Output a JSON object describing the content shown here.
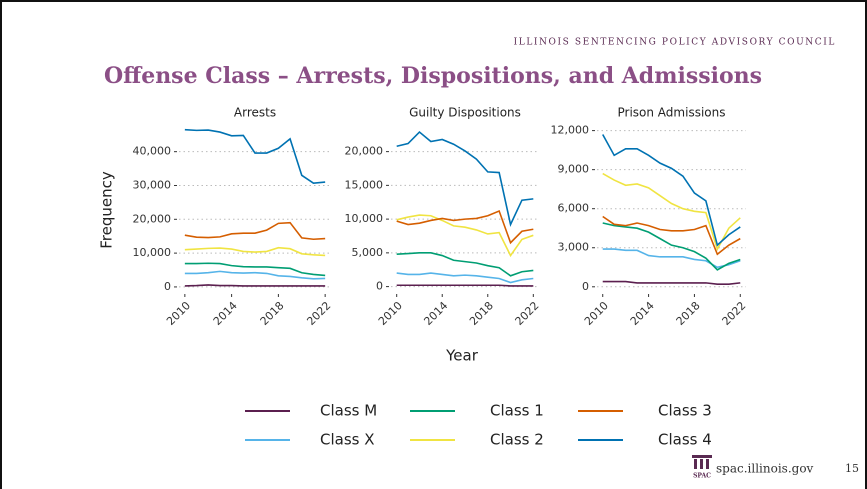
{
  "header": "ILLINOIS SENTENCING POLICY ADVISORY COUNCIL",
  "title": "Offense Class – Arrests, Dispositions, and Admissions",
  "y_label": "Frequency",
  "x_label": "Year",
  "footer": {
    "logo": "SPAC",
    "site": "spac.illinois.gov",
    "page": "15"
  },
  "chart_data": [
    {
      "type": "line",
      "title": "Arrests",
      "x": [
        2010,
        2011,
        2012,
        2013,
        2014,
        2015,
        2016,
        2017,
        2018,
        2019,
        2020,
        2021,
        2022
      ],
      "xlim": [
        2009.5,
        2022.5
      ],
      "xticks": [
        2010,
        2014,
        2018,
        2022
      ],
      "ylim": [
        -1500,
        47000
      ],
      "yticks": [
        0,
        {
          "value": 10000,
          "label": "10,000"
        },
        {
          "value": 20000,
          "label": "20,000"
        },
        {
          "value": 30000,
          "label": "30,000"
        },
        {
          "value": 40000,
          "label": "40,000"
        }
      ],
      "grid": true,
      "series": [
        {
          "name": "Class M",
          "color": "#5b1f4f",
          "values": [
            300,
            400,
            600,
            400,
            400,
            300,
            300,
            300,
            300,
            300,
            300,
            300,
            300
          ]
        },
        {
          "name": "Class X",
          "color": "#56b4e9",
          "values": [
            4000,
            4000,
            4200,
            4600,
            4200,
            4100,
            4200,
            4000,
            3300,
            3100,
            2700,
            2400,
            2500
          ]
        },
        {
          "name": "Class 1",
          "color": "#009e73",
          "values": [
            6900,
            6900,
            7000,
            6900,
            6300,
            6000,
            5900,
            5900,
            5700,
            5500,
            4200,
            3700,
            3400
          ]
        },
        {
          "name": "Class 2",
          "color": "#f0e442",
          "values": [
            11000,
            11200,
            11400,
            11500,
            11200,
            10500,
            10300,
            10500,
            11600,
            11300,
            9800,
            9500,
            9300
          ]
        },
        {
          "name": "Class 3",
          "color": "#d55e00",
          "values": [
            15300,
            14700,
            14600,
            14800,
            15700,
            15900,
            15900,
            16800,
            18800,
            19000,
            14500,
            14100,
            14300
          ]
        },
        {
          "name": "Class 4",
          "color": "#0072b2",
          "values": [
            46500,
            46300,
            46400,
            45800,
            44700,
            44800,
            39600,
            39600,
            41000,
            43800,
            33000,
            30700,
            31000
          ]
        }
      ]
    },
    {
      "type": "line",
      "title": "Guilty Dispositions",
      "x": [
        2010,
        2011,
        2012,
        2013,
        2014,
        2015,
        2016,
        2017,
        2018,
        2019,
        2020,
        2021,
        2022
      ],
      "xlim": [
        2009.5,
        2022.5
      ],
      "xticks": [
        2010,
        2014,
        2018,
        2022
      ],
      "ylim": [
        -800,
        23500
      ],
      "yticks": [
        0,
        {
          "value": 5000,
          "label": "5,000"
        },
        {
          "value": 10000,
          "label": "10,000"
        },
        {
          "value": 15000,
          "label": "15,000"
        },
        {
          "value": 20000,
          "label": "20,000"
        }
      ],
      "grid": true,
      "series": [
        {
          "name": "Class M",
          "color": "#5b1f4f",
          "values": [
            200,
            200,
            200,
            200,
            200,
            200,
            200,
            200,
            200,
            200,
            100,
            100,
            100
          ]
        },
        {
          "name": "Class X",
          "color": "#56b4e9",
          "values": [
            2000,
            1800,
            1800,
            2000,
            1800,
            1600,
            1700,
            1600,
            1400,
            1200,
            600,
            1000,
            1200
          ]
        },
        {
          "name": "Class 1",
          "color": "#009e73",
          "values": [
            4800,
            4900,
            5000,
            5000,
            4600,
            3900,
            3700,
            3500,
            3100,
            2800,
            1600,
            2200,
            2400
          ]
        },
        {
          "name": "Class 2",
          "color": "#f0e442",
          "values": [
            9900,
            10300,
            10600,
            10500,
            9800,
            9000,
            8800,
            8400,
            7800,
            8000,
            4600,
            7000,
            7600
          ]
        },
        {
          "name": "Class 3",
          "color": "#d55e00",
          "values": [
            9700,
            9200,
            9400,
            9800,
            10100,
            9800,
            10000,
            10100,
            10500,
            11200,
            6500,
            8200,
            8500
          ]
        },
        {
          "name": "Class 4",
          "color": "#0072b2",
          "values": [
            20800,
            21200,
            22900,
            21500,
            21800,
            21100,
            20100,
            18900,
            17000,
            16900,
            9200,
            12800,
            13000
          ]
        }
      ]
    },
    {
      "type": "line",
      "title": "Prison Admissions",
      "x": [
        2010,
        2011,
        2012,
        2013,
        2014,
        2015,
        2016,
        2017,
        2018,
        2019,
        2020,
        2021,
        2022
      ],
      "xlim": [
        2009.5,
        2022.5
      ],
      "xticks": [
        2010,
        2014,
        2018,
        2022
      ],
      "ylim": [
        -400,
        12200
      ],
      "yticks": [
        0,
        {
          "value": 3000,
          "label": "3,000"
        },
        {
          "value": 6000,
          "label": "6,000"
        },
        {
          "value": 9000,
          "label": "9,000"
        },
        {
          "value": 12000,
          "label": "12,000"
        }
      ],
      "grid": true,
      "series": [
        {
          "name": "Class M",
          "color": "#5b1f4f",
          "values": [
            400,
            400,
            400,
            300,
            300,
            300,
            300,
            300,
            300,
            300,
            200,
            200,
            300
          ]
        },
        {
          "name": "Class X",
          "color": "#56b4e9",
          "values": [
            2900,
            2900,
            2800,
            2800,
            2400,
            2300,
            2300,
            2300,
            2100,
            2000,
            1500,
            1700,
            2000
          ]
        },
        {
          "name": "Class 1",
          "color": "#009e73",
          "values": [
            4900,
            4700,
            4600,
            4500,
            4200,
            3700,
            3200,
            3000,
            2700,
            2200,
            1300,
            1800,
            2100
          ]
        },
        {
          "name": "Class 2",
          "color": "#f0e442",
          "values": [
            8700,
            8200,
            7800,
            7900,
            7600,
            7000,
            6400,
            6000,
            5800,
            5700,
            2900,
            4500,
            5300
          ]
        },
        {
          "name": "Class 3",
          "color": "#d55e00",
          "values": [
            5400,
            4800,
            4700,
            4900,
            4700,
            4400,
            4300,
            4300,
            4400,
            4700,
            2500,
            3200,
            3700
          ]
        },
        {
          "name": "Class 4",
          "color": "#0072b2",
          "values": [
            11700,
            10100,
            10600,
            10600,
            10100,
            9500,
            9100,
            8500,
            7200,
            6600,
            3200,
            4000,
            4600
          ]
        }
      ]
    }
  ]
}
